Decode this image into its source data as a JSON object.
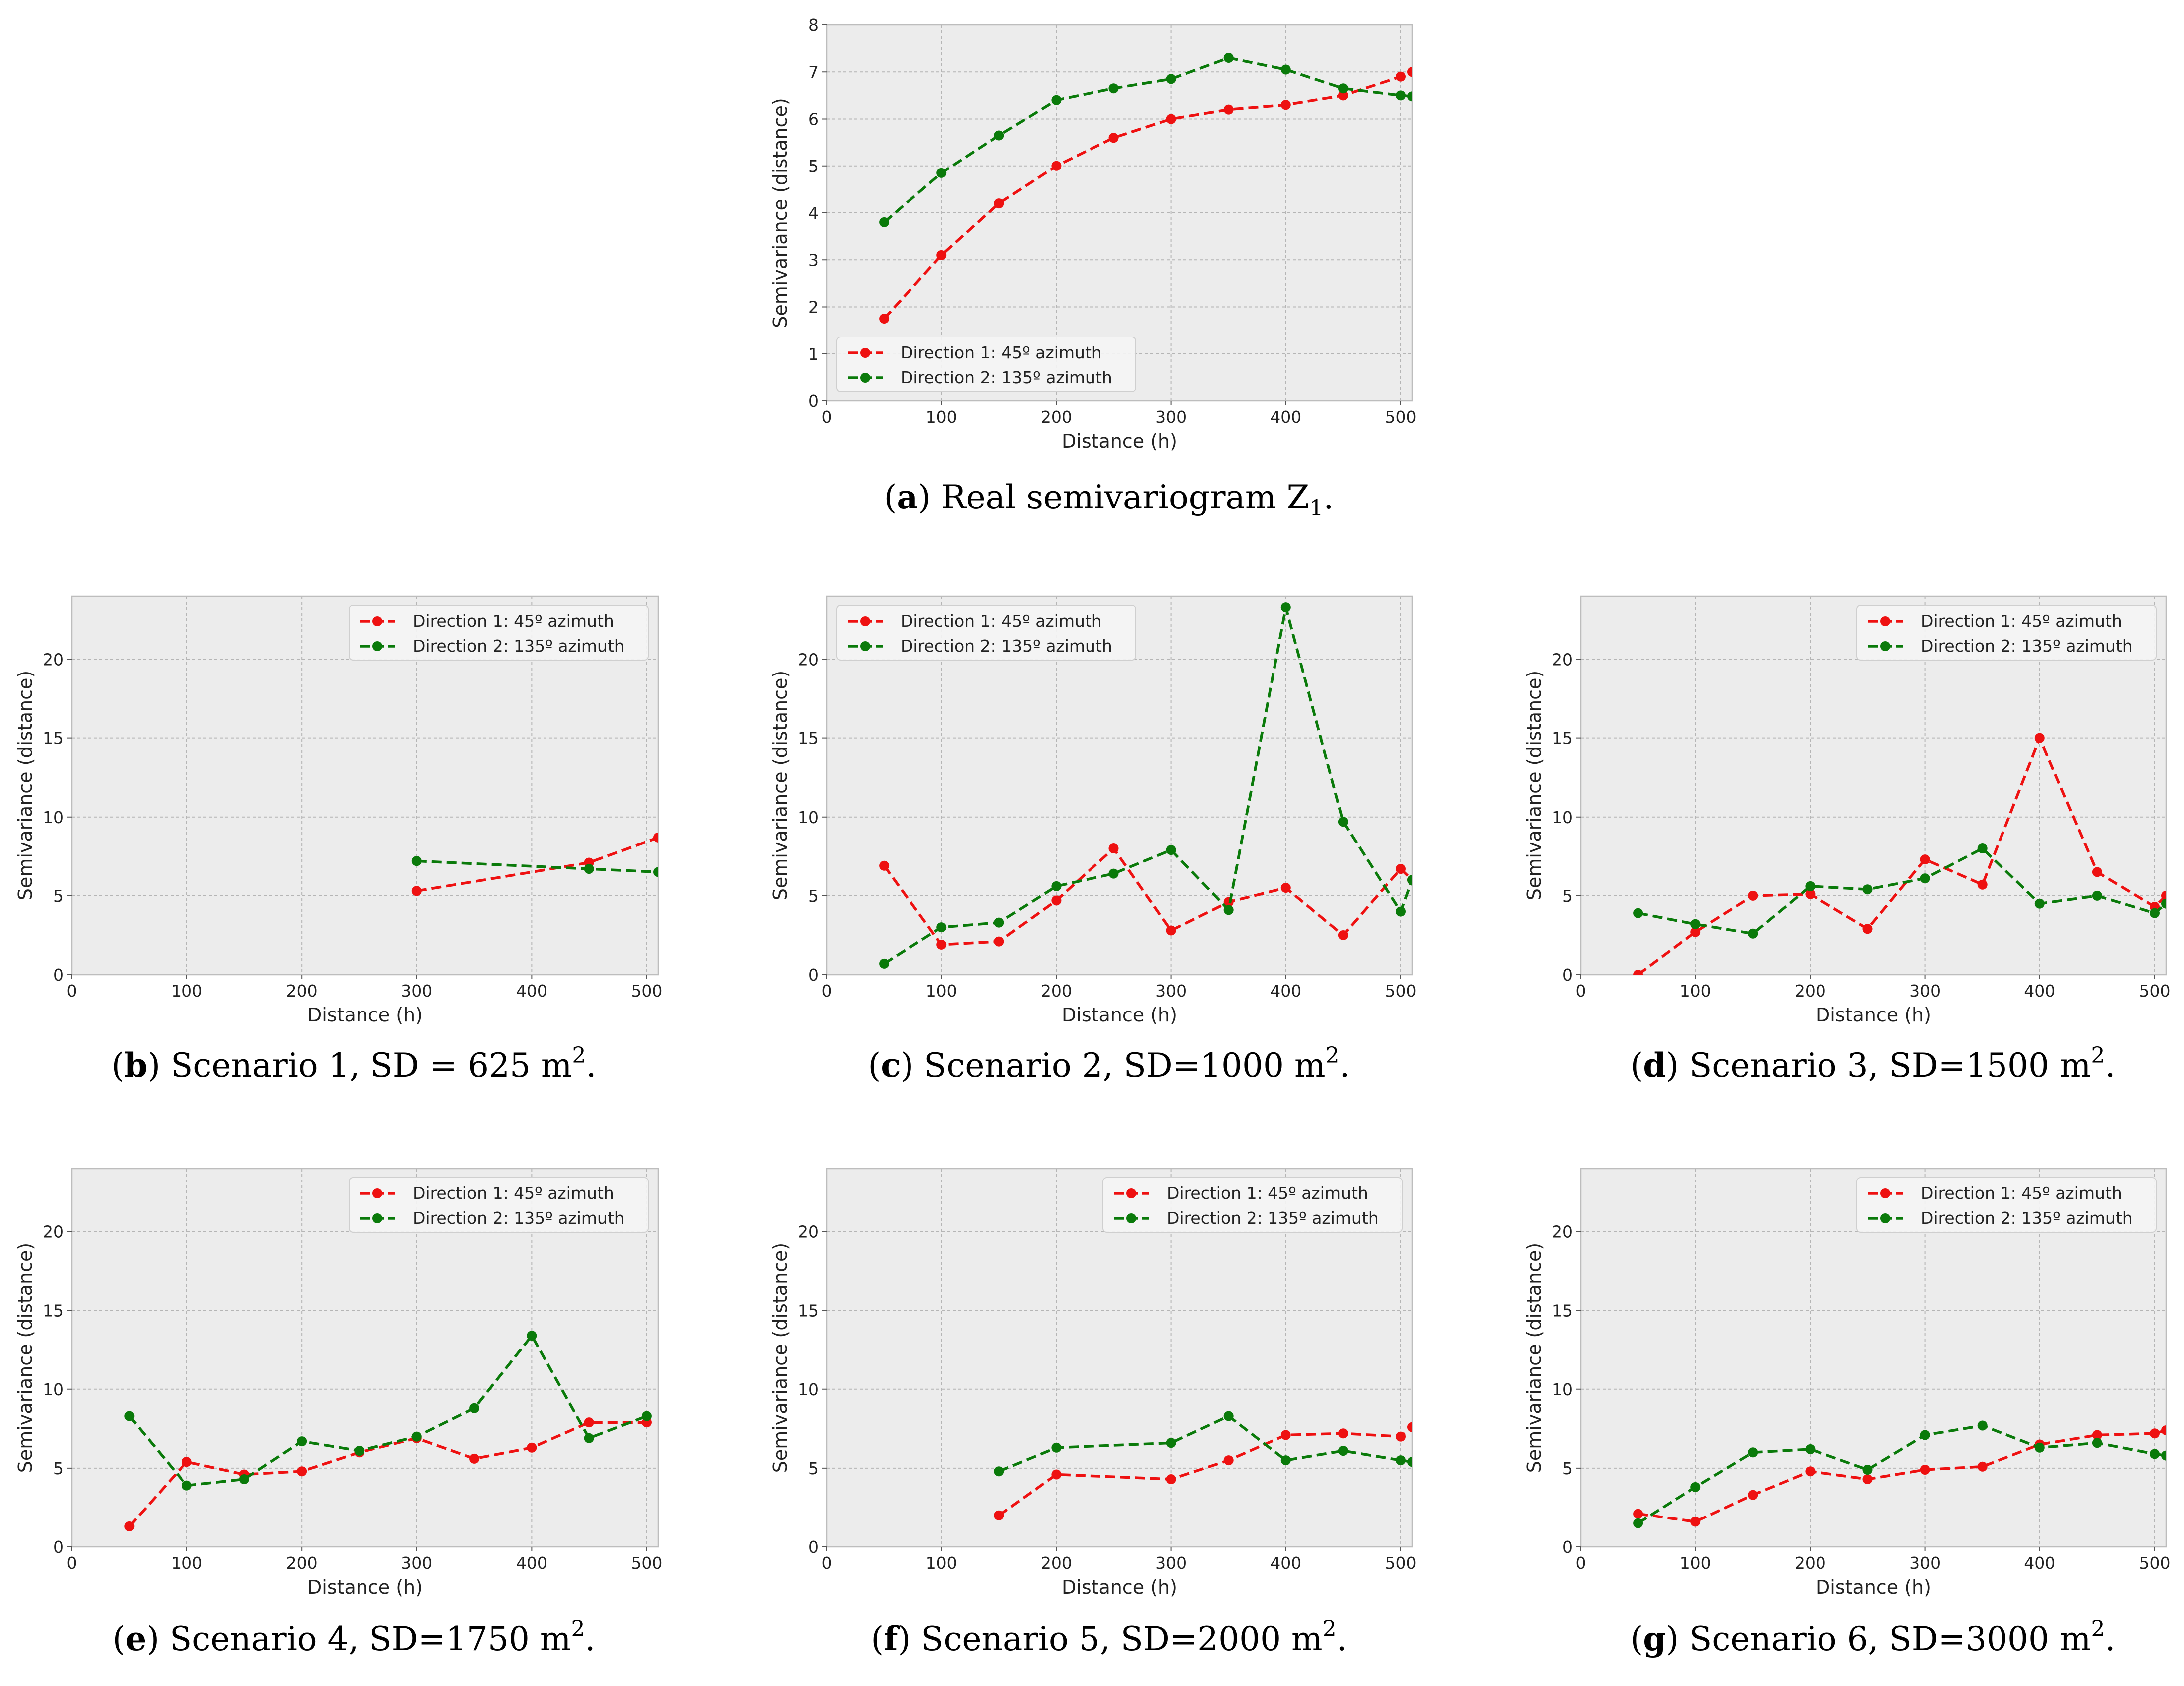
{
  "chart_data": [
    {
      "type": "line",
      "id": "a",
      "xlabel": "Distance (h)",
      "ylabel": "Semivariance (distance)",
      "xlim": [
        0,
        510
      ],
      "ylim": [
        0,
        8
      ],
      "xticks": [
        0,
        100,
        200,
        300,
        400,
        500
      ],
      "yticks": [
        0,
        1,
        2,
        3,
        4,
        5,
        6,
        7,
        8
      ],
      "grid": true,
      "legend": "bottom-left",
      "caption": {
        "letter": "a",
        "text": " Real semivariogram Z",
        "subscript": "1",
        "suffix": "."
      },
      "series": [
        {
          "name": "Direction 1: 45º azimuth",
          "color": "#ee1111",
          "x": [
            50,
            100,
            150,
            200,
            250,
            300,
            350,
            400,
            450,
            500,
            510
          ],
          "y": [
            1.75,
            3.1,
            4.2,
            5.0,
            5.6,
            6.0,
            6.2,
            6.3,
            6.5,
            6.9,
            7.0
          ]
        },
        {
          "name": "Direction 2: 135º azimuth",
          "color": "#0a7a0a",
          "x": [
            50,
            100,
            150,
            200,
            250,
            300,
            350,
            400,
            450,
            500,
            510
          ],
          "y": [
            3.8,
            4.85,
            5.65,
            6.4,
            6.65,
            6.85,
            7.3,
            7.05,
            6.65,
            6.5,
            6.48
          ]
        }
      ]
    },
    {
      "type": "line",
      "id": "b",
      "xlabel": "Distance (h)",
      "ylabel": "Semivariance (distance)",
      "xlim": [
        0,
        510
      ],
      "ylim": [
        0,
        24
      ],
      "xticks": [
        0,
        100,
        200,
        300,
        400,
        500
      ],
      "yticks": [
        0,
        5,
        10,
        15,
        20
      ],
      "grid": true,
      "legend": "top-right",
      "caption": {
        "letter": "b",
        "text": " Scenario 1, SD = 625 m",
        "superscript": "2",
        "suffix": "."
      },
      "series": [
        {
          "name": "Direction 1: 45º azimuth",
          "color": "#ee1111",
          "x": [
            300,
            450,
            510
          ],
          "y": [
            5.3,
            7.1,
            8.7
          ]
        },
        {
          "name": "Direction 2: 135º azimuth",
          "color": "#0a7a0a",
          "x": [
            300,
            450,
            510
          ],
          "y": [
            7.2,
            6.7,
            6.5
          ]
        }
      ]
    },
    {
      "type": "line",
      "id": "c",
      "xlabel": "Distance (h)",
      "ylabel": "Semivariance (distance)",
      "xlim": [
        0,
        510
      ],
      "ylim": [
        0,
        24
      ],
      "xticks": [
        0,
        100,
        200,
        300,
        400,
        500
      ],
      "yticks": [
        0,
        5,
        10,
        15,
        20
      ],
      "grid": true,
      "legend": "top-left",
      "caption": {
        "letter": "c",
        "text": " Scenario 2, SD=1000 m",
        "superscript": "2",
        "suffix": "."
      },
      "series": [
        {
          "name": "Direction 1: 45º azimuth",
          "color": "#ee1111",
          "x": [
            50,
            100,
            150,
            200,
            250,
            300,
            350,
            400,
            450,
            500,
            510
          ],
          "y": [
            6.9,
            1.9,
            2.1,
            4.7,
            8.0,
            2.8,
            4.6,
            5.5,
            2.5,
            6.7,
            6.0
          ]
        },
        {
          "name": "Direction 2: 135º azimuth",
          "color": "#0a7a0a",
          "x": [
            50,
            100,
            150,
            200,
            250,
            300,
            350,
            400,
            450,
            500,
            510
          ],
          "y": [
            0.7,
            3.0,
            3.3,
            5.6,
            6.4,
            7.9,
            4.1,
            23.3,
            9.7,
            4.0,
            6.0
          ]
        }
      ]
    },
    {
      "type": "line",
      "id": "d",
      "xlabel": "Distance (h)",
      "ylabel": "Semivariance (distance)",
      "xlim": [
        0,
        510
      ],
      "ylim": [
        0,
        24
      ],
      "xticks": [
        0,
        100,
        200,
        300,
        400,
        500
      ],
      "yticks": [
        0,
        5,
        10,
        15,
        20
      ],
      "grid": true,
      "legend": "top-right",
      "caption": {
        "letter": "d",
        "text": " Scenario 3, SD=1500 m",
        "superscript": "2",
        "suffix": "."
      },
      "series": [
        {
          "name": "Direction 1: 45º azimuth",
          "color": "#ee1111",
          "x": [
            50,
            100,
            150,
            200,
            250,
            300,
            350,
            400,
            450,
            500,
            510
          ],
          "y": [
            0.0,
            2.7,
            5.0,
            5.1,
            2.9,
            7.3,
            5.7,
            15.0,
            6.5,
            4.3,
            5.0
          ]
        },
        {
          "name": "Direction 2: 135º azimuth",
          "color": "#0a7a0a",
          "x": [
            50,
            100,
            150,
            200,
            250,
            300,
            350,
            400,
            450,
            500,
            510
          ],
          "y": [
            3.9,
            3.2,
            2.6,
            5.6,
            5.4,
            6.1,
            8.0,
            4.5,
            5.0,
            3.9,
            4.5
          ]
        }
      ]
    },
    {
      "type": "line",
      "id": "e",
      "xlabel": "Distance (h)",
      "ylabel": "Semivariance (distance)",
      "xlim": [
        0,
        510
      ],
      "ylim": [
        0,
        24
      ],
      "xticks": [
        0,
        100,
        200,
        300,
        400,
        500
      ],
      "yticks": [
        0,
        5,
        10,
        15,
        20
      ],
      "grid": true,
      "legend": "top-right",
      "caption": {
        "letter": "e",
        "text": " Scenario 4, SD=1750 m",
        "superscript": "2",
        "suffix": "."
      },
      "series": [
        {
          "name": "Direction 1: 45º azimuth",
          "color": "#ee1111",
          "x": [
            50,
            100,
            150,
            200,
            250,
            300,
            350,
            400,
            450,
            500
          ],
          "y": [
            1.3,
            5.4,
            4.6,
            4.8,
            6.0,
            6.9,
            5.6,
            6.3,
            7.9,
            7.9
          ]
        },
        {
          "name": "Direction 2: 135º azimuth",
          "color": "#0a7a0a",
          "x": [
            50,
            100,
            150,
            200,
            250,
            300,
            350,
            400,
            450,
            500
          ],
          "y": [
            8.3,
            3.9,
            4.3,
            6.7,
            6.1,
            7.0,
            8.8,
            13.4,
            6.9,
            8.3
          ]
        }
      ]
    },
    {
      "type": "line",
      "id": "f",
      "xlabel": "Distance (h)",
      "ylabel": "Semivariance (distance)",
      "xlim": [
        0,
        510
      ],
      "ylim": [
        0,
        24
      ],
      "xticks": [
        0,
        100,
        200,
        300,
        400,
        500
      ],
      "yticks": [
        0,
        5,
        10,
        15,
        20
      ],
      "grid": true,
      "legend": "top-right",
      "caption": {
        "letter": "f",
        "text": " Scenario 5, SD=2000 m",
        "superscript": "2",
        "suffix": "."
      },
      "series": [
        {
          "name": "Direction 1: 45º azimuth",
          "color": "#ee1111",
          "x": [
            150,
            200,
            300,
            350,
            400,
            450,
            500,
            510
          ],
          "y": [
            2.0,
            4.6,
            4.3,
            5.5,
            7.1,
            7.2,
            7.0,
            7.6
          ]
        },
        {
          "name": "Direction 2: 135º azimuth",
          "color": "#0a7a0a",
          "x": [
            150,
            200,
            300,
            350,
            400,
            450,
            500,
            510
          ],
          "y": [
            4.8,
            6.3,
            6.6,
            8.3,
            5.5,
            6.1,
            5.5,
            5.4
          ]
        }
      ]
    },
    {
      "type": "line",
      "id": "g",
      "xlabel": "Distance (h)",
      "ylabel": "Semivariance (distance)",
      "xlim": [
        0,
        510
      ],
      "ylim": [
        0,
        24
      ],
      "xticks": [
        0,
        100,
        200,
        300,
        400,
        500
      ],
      "yticks": [
        0,
        5,
        10,
        15,
        20
      ],
      "grid": true,
      "legend": "top-right",
      "caption": {
        "letter": "g",
        "text": " Scenario 6, SD=3000 m",
        "superscript": "2",
        "suffix": "."
      },
      "series": [
        {
          "name": "Direction 1: 45º azimuth",
          "color": "#ee1111",
          "x": [
            50,
            100,
            150,
            200,
            250,
            300,
            350,
            400,
            450,
            500,
            510
          ],
          "y": [
            2.1,
            1.6,
            3.3,
            4.8,
            4.3,
            4.9,
            5.1,
            6.5,
            7.1,
            7.2,
            7.4
          ]
        },
        {
          "name": "Direction 2: 135º azimuth",
          "color": "#0a7a0a",
          "x": [
            50,
            100,
            150,
            200,
            250,
            300,
            350,
            400,
            450,
            500,
            510
          ],
          "y": [
            1.5,
            3.8,
            6.0,
            6.2,
            4.9,
            7.1,
            7.7,
            6.3,
            6.6,
            5.9,
            5.8
          ]
        }
      ]
    }
  ]
}
